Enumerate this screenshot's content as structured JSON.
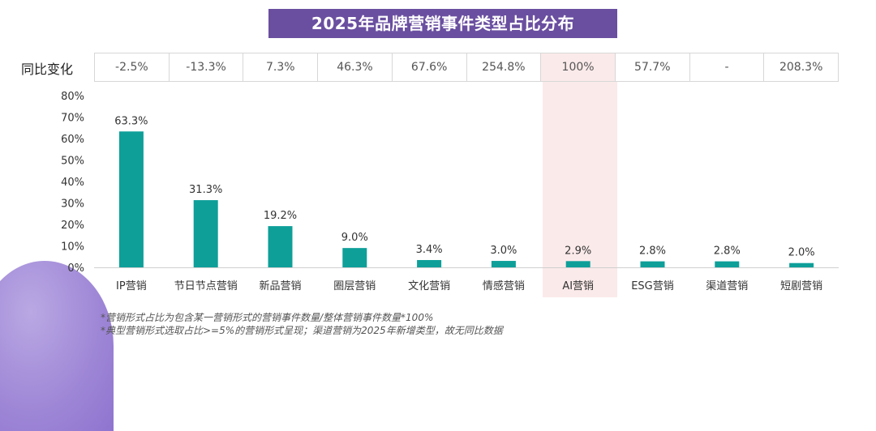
{
  "title": "2025年品牌营销事件类型占比分布",
  "yoy": {
    "label": "同比变化",
    "values": [
      "-2.5%",
      "-13.3%",
      "7.3%",
      "46.3%",
      "67.6%",
      "254.8%",
      "100%",
      "57.7%",
      "-",
      "208.3%"
    ]
  },
  "colors": {
    "bar": "#0e9f99",
    "banner": "#6a4fa0",
    "highlight": "#fbeaea"
  },
  "chart_data": {
    "type": "bar",
    "title": "2025年品牌营销事件类型占比分布",
    "categories": [
      "IP营销",
      "节日节点营销",
      "新品营销",
      "圈层营销",
      "文化营销",
      "情感营销",
      "AI营销",
      "ESG营销",
      "渠道营销",
      "短剧营销"
    ],
    "values": [
      63.3,
      31.3,
      19.2,
      9.0,
      3.4,
      3.0,
      2.9,
      2.8,
      2.8,
      2.0
    ],
    "value_labels": [
      "63.3%",
      "31.3%",
      "19.2%",
      "9.0%",
      "3.4%",
      "3.0%",
      "2.9%",
      "2.8%",
      "2.8%",
      "2.0%"
    ],
    "ylim": [
      0,
      80
    ],
    "yticks": [
      "0%",
      "10%",
      "20%",
      "30%",
      "40%",
      "50%",
      "60%",
      "70%",
      "80%"
    ],
    "highlighted_category": "AI营销",
    "xlabel": "",
    "ylabel": ""
  },
  "footnotes": [
    "*营销形式占比为包含某一营销形式的营销事件数量/整体营销事件数量*100%",
    "*典型营销形式选取占比>=5%的营销形式呈现；渠道营销为2025年新增类型，故无同比数据"
  ]
}
